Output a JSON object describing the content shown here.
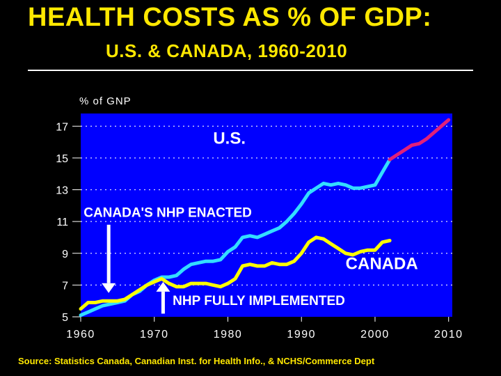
{
  "title": "HEALTH COSTS AS % OF GDP:",
  "subtitle": "U.S. & CANADA, 1960-2010",
  "source": "Source: Statistics Canada, Canadian Inst. for Health Info., & NCHS/Commerce Dept",
  "colors": {
    "title": "#FFE800",
    "plot_background": "#0000FF",
    "us_series": "#33DDFF",
    "us_projection": "#E0207A",
    "canada_series": "#FFFF00",
    "gridline": "#FFFFFF"
  },
  "chart_data": {
    "type": "line",
    "title": "HEALTH COSTS AS % OF GDP: U.S. & CANADA, 1960-2010",
    "ylabel": "% of GNP",
    "xlabel": "",
    "xlim": [
      1960,
      2010.5
    ],
    "ylim": [
      5,
      17.8
    ],
    "x_ticks": [
      1960,
      1970,
      1980,
      1990,
      2000,
      2010
    ],
    "y_ticks": [
      5,
      7,
      9,
      11,
      13,
      15,
      17
    ],
    "grid": "horizontal dotted",
    "series": [
      {
        "name": "U.S.",
        "color": "#33DDFF",
        "points": [
          [
            1960,
            5.1
          ],
          [
            1961,
            5.3
          ],
          [
            1962,
            5.5
          ],
          [
            1963,
            5.7
          ],
          [
            1964,
            5.8
          ],
          [
            1965,
            5.9
          ],
          [
            1966,
            6.0
          ],
          [
            1967,
            6.4
          ],
          [
            1968,
            6.6
          ],
          [
            1969,
            7.0
          ],
          [
            1970,
            7.3
          ],
          [
            1971,
            7.5
          ],
          [
            1972,
            7.5
          ],
          [
            1973,
            7.6
          ],
          [
            1974,
            8.0
          ],
          [
            1975,
            8.3
          ],
          [
            1976,
            8.4
          ],
          [
            1977,
            8.5
          ],
          [
            1978,
            8.5
          ],
          [
            1979,
            8.6
          ],
          [
            1980,
            9.1
          ],
          [
            1981,
            9.4
          ],
          [
            1982,
            10.0
          ],
          [
            1983,
            10.1
          ],
          [
            1984,
            10.0
          ],
          [
            1985,
            10.2
          ],
          [
            1986,
            10.4
          ],
          [
            1987,
            10.6
          ],
          [
            1988,
            11.0
          ],
          [
            1989,
            11.5
          ],
          [
            1990,
            12.1
          ],
          [
            1991,
            12.8
          ],
          [
            1992,
            13.1
          ],
          [
            1993,
            13.4
          ],
          [
            1994,
            13.3
          ],
          [
            1995,
            13.4
          ],
          [
            1996,
            13.3
          ],
          [
            1997,
            13.1
          ],
          [
            1998,
            13.1
          ],
          [
            1999,
            13.2
          ],
          [
            2000,
            13.3
          ],
          [
            2001,
            14.1
          ],
          [
            2002,
            14.9
          ]
        ]
      },
      {
        "name": "U.S. (projected)",
        "color": "#E0207A",
        "points": [
          [
            2002,
            14.9
          ],
          [
            2003,
            15.2
          ],
          [
            2004,
            15.5
          ],
          [
            2005,
            15.8
          ],
          [
            2006,
            15.9
          ],
          [
            2007,
            16.2
          ],
          [
            2008,
            16.6
          ],
          [
            2009,
            17.0
          ],
          [
            2010,
            17.4
          ]
        ]
      },
      {
        "name": "CANADA",
        "color": "#FFFF00",
        "points": [
          [
            1960,
            5.5
          ],
          [
            1961,
            5.9
          ],
          [
            1962,
            5.9
          ],
          [
            1963,
            6.0
          ],
          [
            1964,
            6.0
          ],
          [
            1965,
            6.0
          ],
          [
            1966,
            6.1
          ],
          [
            1967,
            6.4
          ],
          [
            1968,
            6.7
          ],
          [
            1969,
            7.0
          ],
          [
            1970,
            7.2
          ],
          [
            1971,
            7.4
          ],
          [
            1972,
            7.1
          ],
          [
            1973,
            6.9
          ],
          [
            1974,
            6.9
          ],
          [
            1975,
            7.1
          ],
          [
            1976,
            7.1
          ],
          [
            1977,
            7.1
          ],
          [
            1978,
            7.0
          ],
          [
            1979,
            6.9
          ],
          [
            1980,
            7.1
          ],
          [
            1981,
            7.4
          ],
          [
            1982,
            8.2
          ],
          [
            1983,
            8.3
          ],
          [
            1984,
            8.2
          ],
          [
            1985,
            8.2
          ],
          [
            1986,
            8.4
          ],
          [
            1987,
            8.3
          ],
          [
            1988,
            8.3
          ],
          [
            1989,
            8.5
          ],
          [
            1990,
            9.0
          ],
          [
            1991,
            9.7
          ],
          [
            1992,
            10.0
          ],
          [
            1993,
            9.9
          ],
          [
            1994,
            9.6
          ],
          [
            1995,
            9.3
          ],
          [
            1996,
            9.0
          ],
          [
            1997,
            8.9
          ],
          [
            1998,
            9.1
          ],
          [
            1999,
            9.2
          ],
          [
            2000,
            9.2
          ],
          [
            2001,
            9.7
          ],
          [
            2002,
            9.8
          ]
        ]
      }
    ],
    "annotations": [
      {
        "text": "U.S.",
        "x": 1978,
        "y": 15.9,
        "size": "large"
      },
      {
        "text": "CANADA",
        "x": 1996,
        "y": 8.0,
        "size": "large"
      },
      {
        "text": "CANADA'S NHP ENACTED",
        "x": 1960.4,
        "y": 11.3,
        "size": "small"
      },
      {
        "text": "NHP FULLY IMPLEMENTED",
        "x": 1972.5,
        "y": 5.75,
        "size": "small"
      }
    ],
    "arrows": [
      {
        "name": "nhp-enacted-arrow",
        "x": 1963.8,
        "y_from": 10.8,
        "y_to": 6.5,
        "direction": "down"
      },
      {
        "name": "nhp-implemented-arrow",
        "x": 1971.2,
        "y_from": 5.2,
        "y_to": 7.2,
        "direction": "up"
      }
    ]
  }
}
